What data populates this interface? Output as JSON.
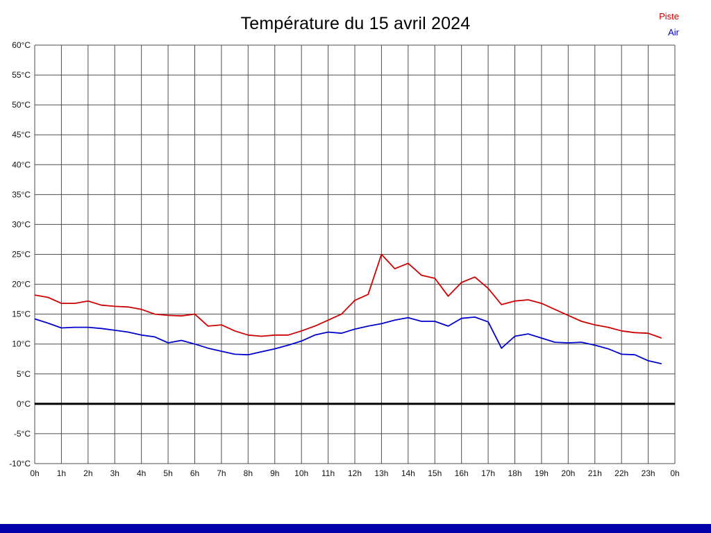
{
  "title": "Température du 15 avril 2024",
  "colors": {
    "piste": "#cc0000",
    "air": "#0000cc",
    "grid": "#4d4d4d",
    "zero_line": "#000000",
    "axis_text": "#111111",
    "bottom_bar": "#0000aa"
  },
  "chart_data": {
    "type": "line",
    "title": "Température du 15 avril 2024",
    "xlabel": "",
    "ylabel": "",
    "ylim": [
      -10,
      60
    ],
    "y_tick_step": 5,
    "x_hours_total": 24,
    "x_step_hours": 0.5,
    "grid": true,
    "zero_line_value": 0,
    "legend_position": "top-right",
    "x_tick_labels": [
      "0h",
      "1h",
      "2h",
      "3h",
      "4h",
      "5h",
      "6h",
      "7h",
      "8h",
      "9h",
      "10h",
      "11h",
      "12h",
      "13h",
      "14h",
      "15h",
      "16h",
      "17h",
      "18h",
      "19h",
      "20h",
      "21h",
      "22h",
      "23h",
      "0h"
    ],
    "y_tick_labels": [
      "-10°C",
      "-5°C",
      "0°C",
      "5°C",
      "10°C",
      "15°C",
      "20°C",
      "25°C",
      "30°C",
      "35°C",
      "40°C",
      "45°C",
      "50°C",
      "55°C",
      "60°C"
    ],
    "series": [
      {
        "name": "Piste",
        "color": "#cc0000",
        "values": [
          18.2,
          17.8,
          16.8,
          16.8,
          17.2,
          16.5,
          16.3,
          16.2,
          15.8,
          15.0,
          14.8,
          14.7,
          15.0,
          13.0,
          13.2,
          12.2,
          11.5,
          11.3,
          11.5,
          11.5,
          12.2,
          13.0,
          14.0,
          15.0,
          17.3,
          18.3,
          25.0,
          22.6,
          23.5,
          21.5,
          21.0,
          18.0,
          20.3,
          21.2,
          19.3,
          16.6,
          17.2,
          17.4,
          16.8,
          15.8,
          14.8,
          13.8,
          13.2,
          12.8,
          12.2,
          11.9,
          11.8,
          11.0
        ]
      },
      {
        "name": "Air",
        "color": "#0000cc",
        "values": [
          14.2,
          13.5,
          12.7,
          12.8,
          12.8,
          12.6,
          12.3,
          12.0,
          11.5,
          11.2,
          10.2,
          10.6,
          10.0,
          9.3,
          8.8,
          8.3,
          8.2,
          8.7,
          9.2,
          9.8,
          10.5,
          11.5,
          12.0,
          11.8,
          12.5,
          13.0,
          13.4,
          14.0,
          14.4,
          13.8,
          13.8,
          13.0,
          14.3,
          14.5,
          13.7,
          9.3,
          11.3,
          11.7,
          11.0,
          10.3,
          10.2,
          10.3,
          9.8,
          9.2,
          8.3,
          8.2,
          7.2,
          6.7
        ]
      }
    ]
  }
}
